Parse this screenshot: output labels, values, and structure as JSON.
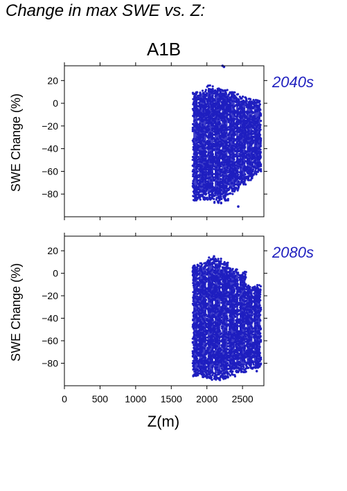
{
  "page_title": "Change in max SWE vs. Z:",
  "scenario": "A1B",
  "colors": {
    "points": "#1f1fbf",
    "period_label": "#1f1fbf",
    "axis": "#000000"
  },
  "chart_data": [
    {
      "type": "scatter",
      "period_label": "2040s",
      "xlabel": "",
      "ylabel": "SWE Change (%)",
      "xlim": [
        0,
        2800
      ],
      "ylim": [
        -100,
        33
      ],
      "xticks": [
        0,
        500,
        1000,
        1500,
        2000,
        2500
      ],
      "yticks": [
        20,
        0,
        -20,
        -40,
        -60,
        -80
      ],
      "show_x_tick_labels": false,
      "grid": false,
      "series": [
        {
          "bands": [
            {
              "x": [
                1800,
                1880
              ],
              "y": [
                -86,
                10
              ]
            },
            {
              "x": [
                1880,
                2000
              ],
              "y": [
                -85,
                12
              ]
            },
            {
              "x": [
                2000,
                2100
              ],
              "y": [
                -85,
                16
              ]
            },
            {
              "x": [
                2100,
                2200
              ],
              "y": [
                -88,
                13
              ]
            },
            {
              "x": [
                2200,
                2300
              ],
              "y": [
                -86,
                12
              ]
            },
            {
              "x": [
                2300,
                2400
              ],
              "y": [
                -80,
                10
              ]
            },
            {
              "x": [
                2400,
                2450
              ],
              "y": [
                -78,
                8
              ]
            },
            {
              "x": [
                2450,
                2550
              ],
              "y": [
                -72,
                6
              ]
            },
            {
              "x": [
                2550,
                2650
              ],
              "y": [
                -68,
                4
              ]
            },
            {
              "x": [
                2650,
                2760
              ],
              "y": [
                -63,
                3
              ]
            }
          ],
          "outliers": [
            {
              "x": 2220,
              "y": 33
            },
            {
              "x": 2240,
              "y": 32
            },
            {
              "x": 2440,
              "y": -91
            },
            {
              "x": 2200,
              "y": -88
            },
            {
              "x": 2560,
              "y": -66
            }
          ]
        }
      ]
    },
    {
      "type": "scatter",
      "period_label": "2080s",
      "xlabel": "Z(m)",
      "ylabel": "SWE Change (%)",
      "xlim": [
        0,
        2800
      ],
      "ylim": [
        -100,
        33
      ],
      "xticks": [
        0,
        500,
        1000,
        1500,
        2000,
        2500
      ],
      "yticks": [
        20,
        0,
        -20,
        -40,
        -60,
        -80
      ],
      "show_x_tick_labels": true,
      "grid": false,
      "series": [
        {
          "bands": [
            {
              "x": [
                1800,
                1880
              ],
              "y": [
                -92,
                8
              ]
            },
            {
              "x": [
                1880,
                2000
              ],
              "y": [
                -93,
                10
              ]
            },
            {
              "x": [
                2000,
                2100
              ],
              "y": [
                -95,
                14
              ]
            },
            {
              "x": [
                2100,
                2200
              ],
              "y": [
                -95,
                13
              ]
            },
            {
              "x": [
                2200,
                2300
              ],
              "y": [
                -94,
                10
              ]
            },
            {
              "x": [
                2300,
                2400
              ],
              "y": [
                -92,
                6
              ]
            },
            {
              "x": [
                2400,
                2450
              ],
              "y": [
                -88,
                4
              ]
            },
            {
              "x": [
                2450,
                2550
              ],
              "y": [
                -88,
                2
              ]
            },
            {
              "x": [
                2550,
                2650
              ],
              "y": [
                -85,
                -10
              ]
            },
            {
              "x": [
                2650,
                2760
              ],
              "y": [
                -85,
                -10
              ]
            }
          ],
          "outliers": [
            {
              "x": 2100,
              "y": 15
            },
            {
              "x": 2480,
              "y": -2
            },
            {
              "x": 2700,
              "y": -87
            }
          ]
        }
      ]
    }
  ]
}
